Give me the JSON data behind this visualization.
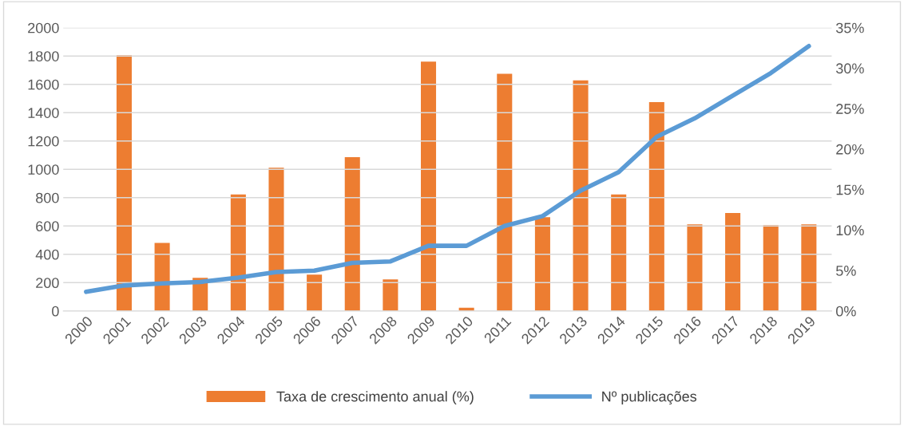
{
  "chart_data": {
    "type": "bar",
    "categories": [
      "2000",
      "2001",
      "2002",
      "2003",
      "2004",
      "2005",
      "2006",
      "2007",
      "2008",
      "2009",
      "2010",
      "2011",
      "2012",
      "2013",
      "2014",
      "2015",
      "2016",
      "2017",
      "2018",
      "2019"
    ],
    "series": [
      {
        "name": "Taxa de crescimento anual (%)",
        "axis": "y2",
        "color": "#ed7d31",
        "values": [
          null,
          31.6,
          8.4,
          4.1,
          14.4,
          17.7,
          4.5,
          19.0,
          3.9,
          30.8,
          0.4,
          29.3,
          11.6,
          28.5,
          14.4,
          25.8,
          10.7,
          12.1,
          10.6,
          10.7
        ]
      },
      {
        "name": "Nº publicações",
        "type": "line",
        "axis": "y",
        "color": "#5b9bd5",
        "values": [
          135,
          180,
          195,
          205,
          235,
          275,
          285,
          340,
          350,
          460,
          460,
          600,
          670,
          850,
          980,
          1230,
          1360,
          1520,
          1680,
          1870
        ]
      }
    ],
    "ylim": [
      0,
      2000
    ],
    "yticks": [
      0,
      200,
      400,
      600,
      800,
      1000,
      1200,
      1400,
      1600,
      1800,
      2000
    ],
    "y2lim": [
      0,
      35
    ],
    "y2ticks": [
      {
        "value": 0,
        "label": "0%"
      },
      {
        "value": 5,
        "label": "5%"
      },
      {
        "value": 10,
        "label": "10%"
      },
      {
        "value": 15,
        "label": "15%"
      },
      {
        "value": 20,
        "label": "20%"
      },
      {
        "value": 25,
        "label": "25%"
      },
      {
        "value": 30,
        "label": "30%"
      },
      {
        "value": 35,
        "label": "35%"
      }
    ],
    "grid": "y",
    "legend": "bottom",
    "marker": "none",
    "line_style": "solid"
  }
}
